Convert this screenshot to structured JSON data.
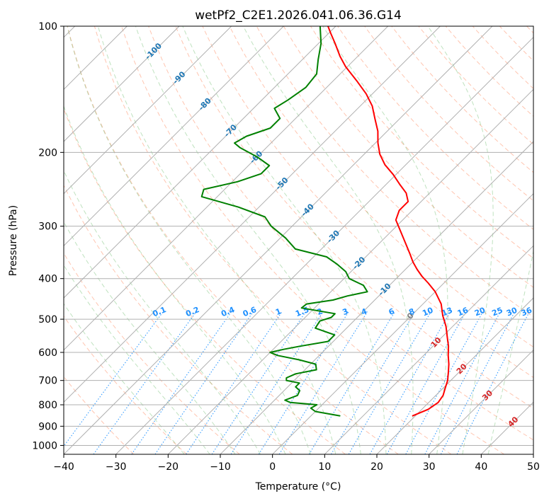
{
  "chart_data": {
    "type": "skew-t log-p",
    "title": "wetPf2_C2E1.2026.041.06.36.G14",
    "xlabel": "Temperature (°C)",
    "ylabel": "Pressure (hPa)",
    "xlim": [
      -40,
      50
    ],
    "ylim": [
      1050,
      100
    ],
    "y_scale": "log",
    "grid": true,
    "x_ticks": [
      -40,
      -30,
      -20,
      -10,
      0,
      10,
      20,
      30,
      40,
      50
    ],
    "y_ticks": [
      100,
      200,
      300,
      400,
      500,
      600,
      700,
      800,
      900,
      1000
    ],
    "colors": {
      "temperature": "#ff0000",
      "dewpoint": "#008000",
      "dry_adiabat": "#ff7f50",
      "moist_adiabat": "#2ca02c",
      "mixing_ratio": "#1e90ff",
      "isotherm_label": "#1f77b4",
      "isotherm_warm_label": "#d62728",
      "grid": "#b0b0b0"
    },
    "isotherm_labels": [
      "-100",
      "-90",
      "-80",
      "-70",
      "-60",
      "-50",
      "-40",
      "-30",
      "-20",
      "-10",
      "0",
      "10",
      "20",
      "30",
      "40"
    ],
    "mixing_ratio_labels": [
      "0.1",
      "0.2",
      "0.4",
      "0.6",
      "1",
      "1.5",
      "2",
      "3",
      "4",
      "6",
      "8",
      "10",
      "13",
      "16",
      "20",
      "25",
      "30",
      "36"
    ],
    "series": [
      {
        "key": "temperature",
        "pressure": [
          850,
          820,
          790,
          760,
          730,
          700,
          670,
          640,
          610,
          580,
          550,
          520,
          490,
          460,
          430,
          410,
          395,
          380,
          365,
          350,
          330,
          310,
          290,
          275,
          262,
          250,
          238,
          226,
          214,
          202,
          190,
          178,
          166,
          155,
          145,
          135,
          125,
          118,
          110,
          104,
          100
        ],
        "values": [
          19.5,
          21.2,
          21.8,
          21.4,
          20.4,
          19.4,
          18.0,
          16.5,
          14.7,
          13.0,
          10.9,
          8.7,
          6.0,
          3.5,
          0.0,
          -3.0,
          -5.5,
          -7.8,
          -10.0,
          -12.0,
          -14.9,
          -18.0,
          -21.3,
          -22.5,
          -22.5,
          -24.5,
          -27.5,
          -30.5,
          -34.0,
          -37.0,
          -39.5,
          -41.8,
          -44.8,
          -47.7,
          -51.2,
          -55.5,
          -60.3,
          -63.4,
          -66.8,
          -69.6,
          -71.5
        ]
      },
      {
        "key": "dewpoint",
        "pressure": [
          850,
          830,
          815,
          800,
          790,
          780,
          760,
          740,
          725,
          710,
          700,
          690,
          675,
          660,
          640,
          625,
          610,
          600,
          590,
          580,
          565,
          545,
          525,
          505,
          495,
          485,
          470,
          460,
          450,
          440,
          430,
          415,
          400,
          385,
          370,
          355,
          340,
          320,
          300,
          285,
          270,
          255,
          245,
          235,
          225,
          215,
          205,
          195,
          190,
          183,
          175,
          166,
          157,
          150,
          140,
          130,
          120,
          110,
          100
        ],
        "values": [
          5.5,
          0.0,
          -1.5,
          -1.0,
          -6.5,
          -8.0,
          -6.5,
          -7.0,
          -8.5,
          -8.5,
          -11.5,
          -12.0,
          -11.0,
          -7.8,
          -9.0,
          -13.0,
          -18.0,
          -20.0,
          -18.0,
          -15.5,
          -11.0,
          -11.0,
          -16.0,
          -16.5,
          -15.0,
          -15.0,
          -22.5,
          -22.3,
          -18.0,
          -16.0,
          -13.0,
          -15.0,
          -19.0,
          -21.0,
          -24.0,
          -27.5,
          -35.0,
          -39.0,
          -44.0,
          -47.0,
          -54.0,
          -63.0,
          -64.0,
          -59.0,
          -56.0,
          -56.0,
          -60.0,
          -65.0,
          -67.0,
          -66.0,
          -63.0,
          -63.0,
          -66.0,
          -65.0,
          -64.0,
          -64.5,
          -67.0,
          -69.5,
          -73.0
        ]
      }
    ]
  }
}
